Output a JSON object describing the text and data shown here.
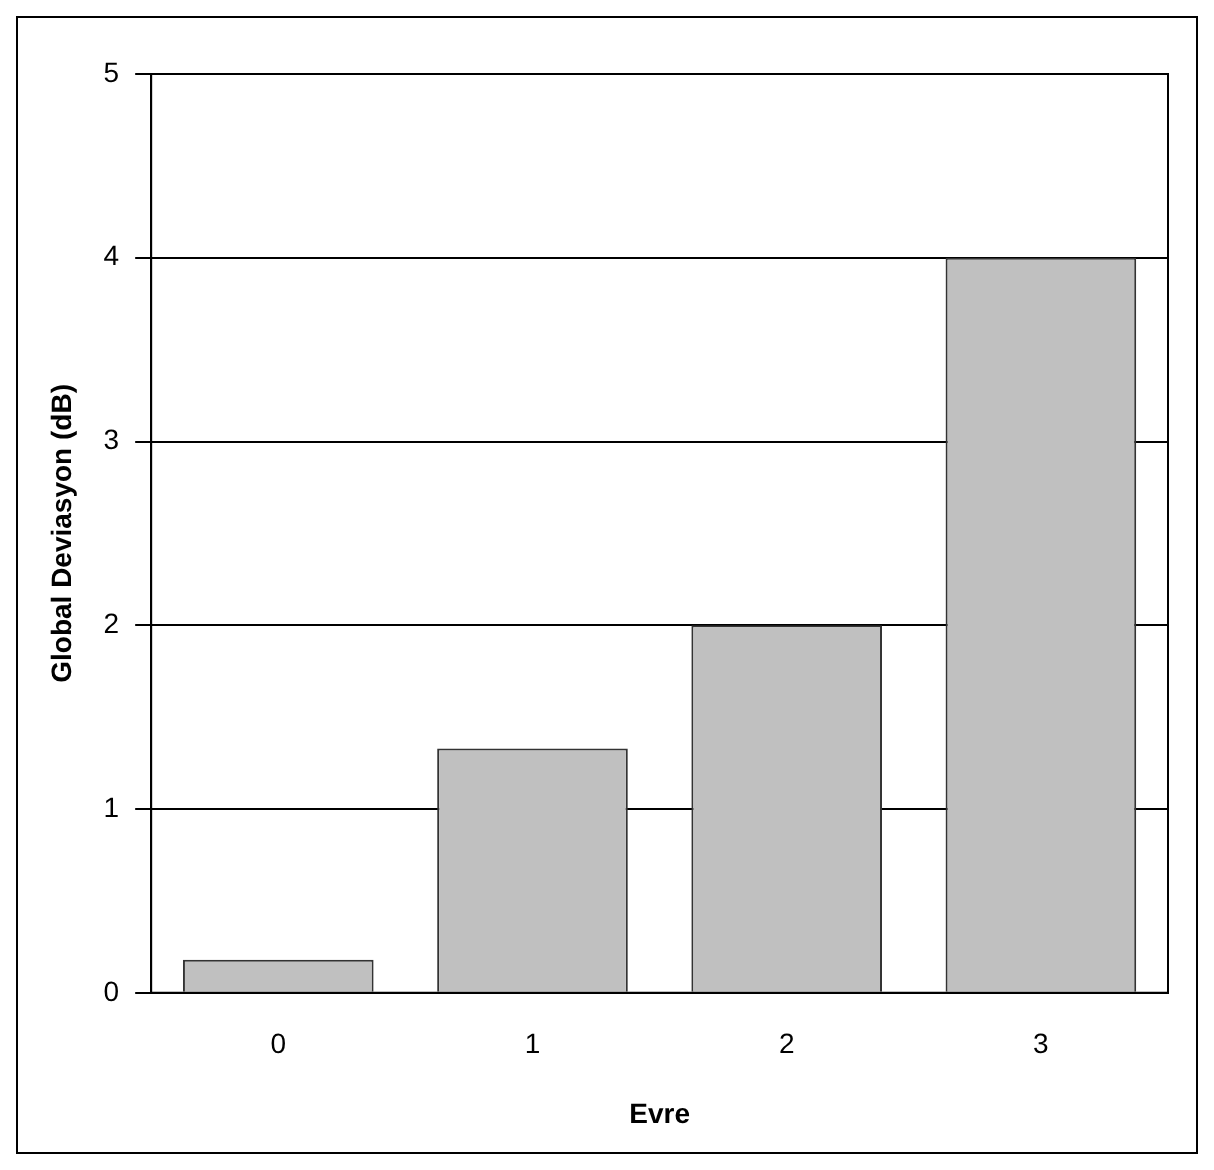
{
  "chart_data": {
    "type": "bar",
    "xlabel": "Evre",
    "ylabel": "Global Deviasyon (dB)",
    "categories": [
      "0",
      "1",
      "2",
      "3"
    ],
    "values": [
      0.18,
      1.33,
      2.0,
      4.0
    ],
    "color": "#c0c0c0",
    "ylim": [
      0,
      5
    ],
    "yticks": [
      0,
      1,
      2,
      3,
      4,
      5
    ],
    "grid": "y",
    "legend": false
  }
}
